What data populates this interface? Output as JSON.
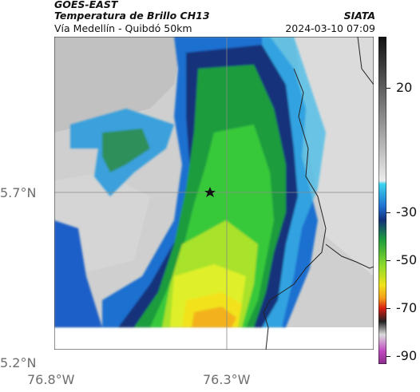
{
  "header": {
    "satellite": "GOES-EAST",
    "product": "Temperatura de Brillo CH13",
    "route": "Vía Medellín - Quibdó 50km",
    "source": "SIATA",
    "datetime": "2024-03-10 07:09"
  },
  "map": {
    "lat_labels": [
      "5.7°N",
      "5.2°N"
    ],
    "lon_labels": [
      "76.8°W",
      "76.3°W"
    ],
    "marker_icon": "star-icon"
  },
  "colorbar": {
    "ticks": [
      "20",
      "-30",
      "-50",
      "-70",
      "-90"
    ]
  }
}
